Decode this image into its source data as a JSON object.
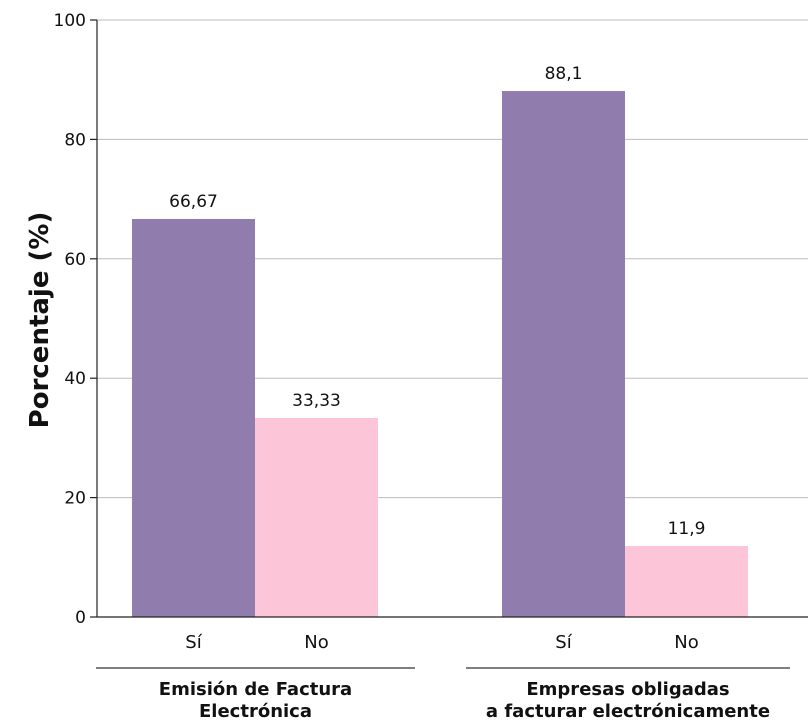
{
  "chart_data": {
    "type": "bar",
    "ylabel": "Porcentaje (%)",
    "ylim": [
      0,
      100
    ],
    "yticks": [
      0,
      20,
      40,
      60,
      80,
      100
    ],
    "grid": true,
    "groups": [
      {
        "label_lines": [
          "Emisión de Factura",
          "Electrónica"
        ],
        "bars": [
          {
            "category": "Sí",
            "value": 66.67,
            "value_label": "66,67",
            "color": "#917dad"
          },
          {
            "category": "No",
            "value": 33.33,
            "value_label": "33,33",
            "color": "#fdc5d8"
          }
        ]
      },
      {
        "label_lines": [
          "Empresas obligadas",
          "a facturar electrónicamente"
        ],
        "bars": [
          {
            "category": "Sí",
            "value": 88.1,
            "value_label": "88,1",
            "color": "#917dad"
          },
          {
            "category": "No",
            "value": 11.9,
            "value_label": "11,9",
            "color": "#fdc5d8"
          }
        ]
      }
    ]
  }
}
